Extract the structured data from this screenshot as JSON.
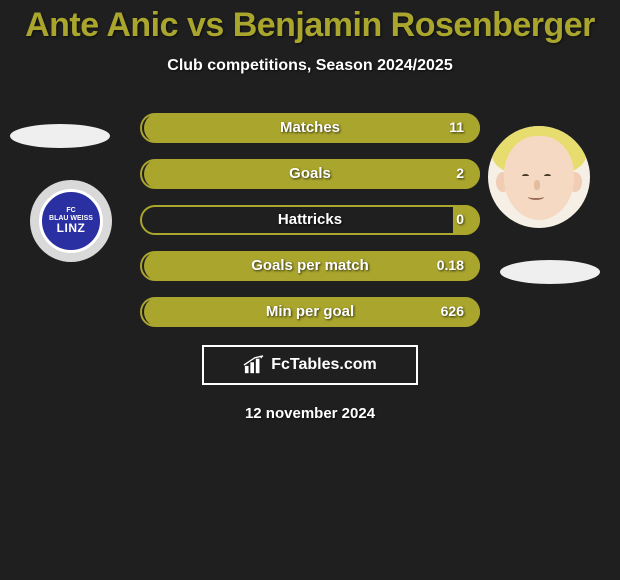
{
  "title": "Ante Anic vs Benjamin Rosenberger",
  "title_color": "#a9a52d",
  "subtitle": "Club competitions, Season 2024/2025",
  "accent_color": "#a9a52d",
  "background_color": "#1f1f1f",
  "text_color": "#ffffff",
  "stats": [
    {
      "label": "Matches",
      "right_value": "11",
      "right_fill_pct": 100
    },
    {
      "label": "Goals",
      "right_value": "2",
      "right_fill_pct": 100
    },
    {
      "label": "Hattricks",
      "right_value": "0",
      "right_fill_pct": 8
    },
    {
      "label": "Goals per match",
      "right_value": "0.18",
      "right_fill_pct": 100
    },
    {
      "label": "Min per goal",
      "right_value": "626",
      "right_fill_pct": 100
    }
  ],
  "left_badge": {
    "line1": "FC",
    "line2": "BLAU WEISS",
    "line3": "LINZ",
    "bg": "#2a2fa1"
  },
  "brand": {
    "icon": "bar-chart-icon",
    "text": "FcTables.com"
  },
  "date": "12 november 2024"
}
